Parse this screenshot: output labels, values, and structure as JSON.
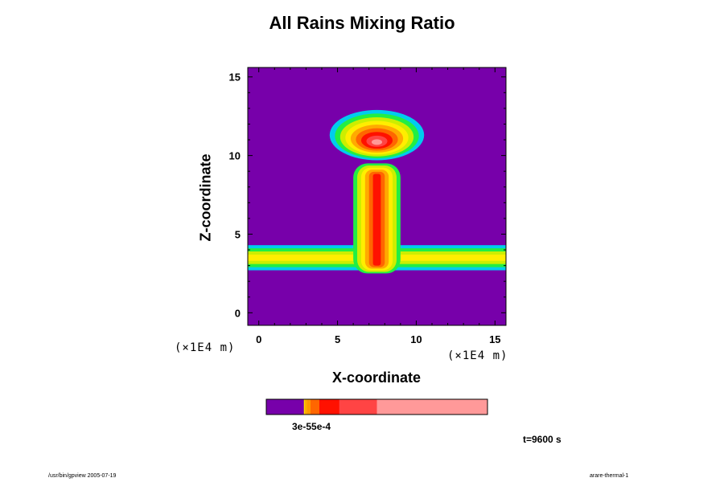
{
  "colors": {
    "background": "#7700aa",
    "levels": [
      "#7700aa",
      "#2255ff",
      "#00ccee",
      "#22ee44",
      "#ccee00",
      "#ffee00",
      "#ffaa00",
      "#ff6600",
      "#ff1100",
      "#ff4444",
      "#ff9999"
    ]
  },
  "footer": {
    "left": "/usr/bin/gpview 2005-07-19",
    "right": "arare-thermal-1"
  },
  "chart_data": {
    "type": "heatmap",
    "title": "All Rains Mixing Ratio",
    "xlabel": "X-coordinate",
    "ylabel": "Z-coordinate",
    "x_unit": "(×1E4 m)",
    "z_unit": "(×1E4 m)",
    "xlim": [
      -0.7,
      15.7
    ],
    "ylim": [
      -0.8,
      15.6
    ],
    "x_ticks": [
      0,
      5,
      10,
      15
    ],
    "y_ticks": [
      0,
      5,
      10,
      15
    ],
    "time_label": "t=9600 s",
    "colorbar": {
      "label_text": "3e-55e-4",
      "segments": [
        {
          "color": "#7700aa",
          "frac": 0.17
        },
        {
          "color": "#ffdd00",
          "frac": 0.005
        },
        {
          "color": "#ffaa00",
          "frac": 0.01
        },
        {
          "color": "#ff9900",
          "frac": 0.015
        },
        {
          "color": "#ff6600",
          "frac": 0.04
        },
        {
          "color": "#ff1100",
          "frac": 0.09
        },
        {
          "color": "#ff4444",
          "frac": 0.17
        },
        {
          "color": "#ff9999",
          "frac": 0.5
        }
      ]
    },
    "features": [
      {
        "name": "rain-layer",
        "shape": "band",
        "x": [
          -0.7,
          15.7
        ],
        "z_center": 3.5,
        "z_half": 0.8,
        "levels": [
          2,
          3,
          4,
          5
        ]
      },
      {
        "name": "rain-column",
        "shape": "column",
        "x_center": 7.5,
        "x_half": 1.5,
        "z": [
          2.5,
          9.5
        ],
        "levels": [
          3,
          4,
          5,
          6,
          7,
          8
        ]
      },
      {
        "name": "anvil",
        "shape": "ellipse",
        "x_center": 7.5,
        "z_center": 11.3,
        "rx": 3.0,
        "rz": 1.6,
        "levels": [
          2,
          3,
          4,
          5,
          6,
          7,
          8,
          9,
          10
        ]
      }
    ]
  }
}
